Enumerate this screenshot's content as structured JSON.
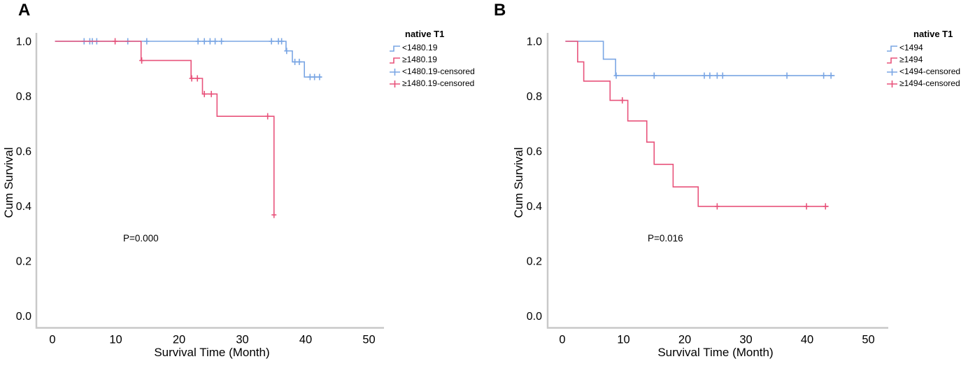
{
  "colors": {
    "blue": "#7aa6e4",
    "red": "#e8537b",
    "axis": "#c9c9c9",
    "text": "#000000",
    "background": "#ffffff"
  },
  "panels": [
    {
      "id": "A",
      "corner_label": "A",
      "ylabel": "Cum Survival",
      "xlabel": "Survival Time (Month)",
      "p_value": "P=0.000",
      "legend": {
        "title": "native T1",
        "entries": [
          {
            "label": "<1480.19",
            "color": "blue",
            "icon": "step-line-icon"
          },
          {
            "label": "≥1480.19",
            "color": "red",
            "icon": "step-line-icon"
          },
          {
            "label": "<1480.19-censored",
            "color": "blue",
            "icon": "censor-plus-icon"
          },
          {
            "label": "≥1480.19-censored",
            "color": "red",
            "icon": "censor-plus-icon"
          }
        ]
      }
    },
    {
      "id": "B",
      "corner_label": "B",
      "ylabel": "Cum Survival",
      "xlabel": "Survival Time (Month)",
      "p_value": "P=0.016",
      "legend": {
        "title": "native T1",
        "entries": [
          {
            "label": "<1494",
            "color": "blue",
            "icon": "step-line-icon"
          },
          {
            "label": "≥1494",
            "color": "red",
            "icon": "step-line-icon"
          },
          {
            "label": "<1494-censored",
            "color": "blue",
            "icon": "censor-plus-icon"
          },
          {
            "label": "≥1494-censored",
            "color": "red",
            "icon": "censor-plus-icon"
          }
        ]
      }
    }
  ],
  "chart_data": [
    {
      "panel": "A",
      "type": "line",
      "subtype": "kaplan-meier-step",
      "legend_title": "native T1",
      "xlabel": "Survival Time (Month)",
      "ylabel": "Cum Survival",
      "annotation": "P=0.000",
      "xlim": [
        0,
        50
      ],
      "ylim": [
        0.0,
        1.0
      ],
      "xticks": [
        0,
        10,
        20,
        30,
        40,
        50
      ],
      "yticks": [
        1.0,
        0.8,
        0.6,
        0.4,
        0.2,
        0.0
      ],
      "grid": false,
      "legend_position": "outside-top-right",
      "series": [
        {
          "name": "<1480.19",
          "color_key": "blue",
          "steps": [
            [
              0.4,
              1.0
            ],
            [
              36.9,
              1.0
            ],
            [
              36.9,
              0.965
            ],
            [
              37.9,
              0.965
            ],
            [
              37.9,
              0.925
            ],
            [
              39.8,
              0.925
            ],
            [
              39.8,
              0.87
            ],
            [
              42.6,
              0.87
            ]
          ],
          "censored": [
            [
              5.0,
              1.0
            ],
            [
              5.9,
              1.0
            ],
            [
              6.3,
              1.0
            ],
            [
              7.0,
              1.0
            ],
            [
              11.9,
              1.0
            ],
            [
              14.9,
              1.0
            ],
            [
              23.0,
              1.0
            ],
            [
              24.0,
              1.0
            ],
            [
              24.9,
              1.0
            ],
            [
              25.7,
              1.0
            ],
            [
              26.7,
              1.0
            ],
            [
              34.6,
              1.0
            ],
            [
              35.7,
              1.0
            ],
            [
              36.2,
              1.0
            ],
            [
              37.0,
              0.965
            ],
            [
              38.3,
              0.925
            ],
            [
              39.0,
              0.925
            ],
            [
              40.7,
              0.87
            ],
            [
              41.4,
              0.87
            ],
            [
              42.2,
              0.87
            ]
          ]
        },
        {
          "name": "≥1480.19",
          "color_key": "red",
          "steps": [
            [
              0.4,
              1.0
            ],
            [
              14.0,
              1.0
            ],
            [
              14.0,
              0.93
            ],
            [
              21.9,
              0.93
            ],
            [
              21.9,
              0.865
            ],
            [
              23.7,
              0.865
            ],
            [
              23.7,
              0.808
            ],
            [
              26.0,
              0.808
            ],
            [
              26.0,
              0.727
            ],
            [
              35.0,
              0.727
            ],
            [
              35.0,
              0.368
            ]
          ],
          "censored": [
            [
              9.9,
              1.0
            ],
            [
              14.1,
              0.93
            ],
            [
              22.0,
              0.865
            ],
            [
              22.9,
              0.865
            ],
            [
              24.0,
              0.808
            ],
            [
              25.1,
              0.808
            ],
            [
              34.0,
              0.727
            ],
            [
              35.0,
              0.368
            ]
          ]
        }
      ]
    },
    {
      "panel": "B",
      "type": "line",
      "subtype": "kaplan-meier-step",
      "legend_title": "native T1",
      "xlabel": "Survival Time (Month)",
      "ylabel": "Cum Survival",
      "annotation": "P=0.016",
      "xlim": [
        0,
        50
      ],
      "ylim": [
        0.0,
        1.0
      ],
      "xticks": [
        0,
        10,
        20,
        30,
        40,
        50
      ],
      "yticks": [
        1.0,
        0.8,
        0.6,
        0.4,
        0.2,
        0.0
      ],
      "grid": false,
      "legend_position": "outside-top-right",
      "series": [
        {
          "name": "<1494",
          "color_key": "blue",
          "steps": [
            [
              0.5,
              1.0
            ],
            [
              6.7,
              1.0
            ],
            [
              6.7,
              0.935
            ],
            [
              8.7,
              0.935
            ],
            [
              8.7,
              0.875
            ],
            [
              44.5,
              0.875
            ]
          ],
          "censored": [
            [
              8.8,
              0.875
            ],
            [
              15.0,
              0.875
            ],
            [
              23.2,
              0.875
            ],
            [
              24.1,
              0.875
            ],
            [
              25.3,
              0.875
            ],
            [
              26.2,
              0.875
            ],
            [
              36.7,
              0.875
            ],
            [
              42.7,
              0.875
            ],
            [
              43.9,
              0.875
            ]
          ]
        },
        {
          "name": "≥1494",
          "color_key": "red",
          "steps": [
            [
              0.5,
              1.0
            ],
            [
              2.5,
              1.0
            ],
            [
              2.5,
              0.925
            ],
            [
              3.5,
              0.925
            ],
            [
              3.5,
              0.855
            ],
            [
              7.8,
              0.855
            ],
            [
              7.8,
              0.785
            ],
            [
              10.7,
              0.785
            ],
            [
              10.7,
              0.71
            ],
            [
              13.8,
              0.71
            ],
            [
              13.8,
              0.633
            ],
            [
              15.0,
              0.633
            ],
            [
              15.0,
              0.552
            ],
            [
              18.1,
              0.552
            ],
            [
              18.1,
              0.47
            ],
            [
              22.2,
              0.47
            ],
            [
              22.2,
              0.399
            ],
            [
              43.5,
              0.399
            ]
          ],
          "censored": [
            [
              9.8,
              0.785
            ],
            [
              25.3,
              0.399
            ],
            [
              39.9,
              0.399
            ],
            [
              43.0,
              0.399
            ]
          ]
        }
      ]
    }
  ]
}
